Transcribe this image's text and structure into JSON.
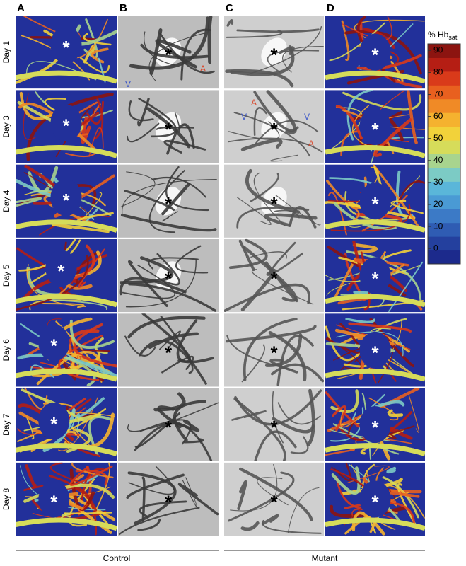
{
  "panel_labels": [
    "A",
    "B",
    "C",
    "D"
  ],
  "row_labels": [
    "Day 1",
    "Day 3",
    "Day 4",
    "Day 5",
    "Day 6",
    "Day 7",
    "Day 8"
  ],
  "asterisk": "*",
  "panel_B_day1_labels": [
    "A",
    "V"
  ],
  "panel_C_day3_labels": [
    "A",
    "V",
    "V",
    "A"
  ],
  "colorbar": {
    "title": "% Hb",
    "title_sub": "sat",
    "ticks": [
      90,
      80,
      70,
      60,
      50,
      40,
      30,
      20,
      10,
      0
    ],
    "range": [
      -7,
      93
    ],
    "colors": [
      "#1c2a8c",
      "#24409e",
      "#2f5cb3",
      "#3c7ac6",
      "#4a9ad4",
      "#5ab6d9",
      "#7ccbc5",
      "#a8d48e",
      "#d6dc5a",
      "#f2d23a",
      "#f5b22f",
      "#f08a26",
      "#e8601f",
      "#d93a1a",
      "#b51e14",
      "#8c1410"
    ]
  },
  "groups": [
    "Control",
    "Mutant"
  ]
}
